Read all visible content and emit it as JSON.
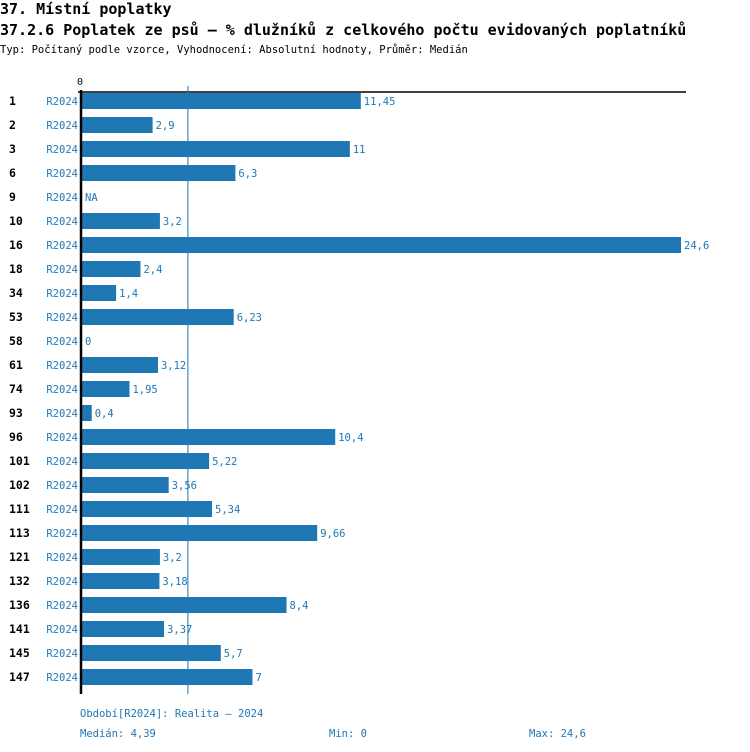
{
  "header": {
    "section": "37. Místní poplatky",
    "title": "37.2.6 Poplatek ze psů – % dlužníků z celkového počtu evidovaných poplatníků",
    "subtitle": "Typ: Počítaný podle vzorce, Vyhodnocení: Absolutní hodnoty, Průměr: Medián"
  },
  "colors": {
    "bar": "#1f77b4",
    "label": "#1f77b4",
    "axis": "#000000"
  },
  "chart_data": {
    "type": "bar",
    "orientation": "horizontal",
    "title": "37.2.6 Poplatek ze psů – % dlužníků z celkového počtu evidovaných poplatníků",
    "xlabel": "",
    "ylabel": "",
    "x_tick_labels": [
      "0"
    ],
    "xlim": [
      0,
      24.6
    ],
    "grid": false,
    "period": "R2024",
    "categories": [
      "1",
      "2",
      "3",
      "6",
      "9",
      "10",
      "16",
      "18",
      "34",
      "53",
      "58",
      "61",
      "74",
      "93",
      "96",
      "101",
      "102",
      "111",
      "113",
      "121",
      "132",
      "136",
      "141",
      "145",
      "147"
    ],
    "values": [
      11.45,
      2.9,
      11,
      6.3,
      null,
      3.2,
      24.6,
      2.4,
      1.4,
      6.23,
      0,
      3.12,
      1.95,
      0.4,
      10.4,
      5.22,
      3.56,
      5.34,
      9.66,
      3.2,
      3.18,
      8.4,
      3.37,
      5.7,
      7
    ],
    "value_labels": [
      "11,45",
      "2,9",
      "11",
      "6,3",
      "NA",
      "3,2",
      "24,6",
      "2,4",
      "1,4",
      "6,23",
      "0",
      "3,12",
      "1,95",
      "0,4",
      "10,4",
      "5,22",
      "3,56",
      "5,34",
      "9,66",
      "3,2",
      "3,18",
      "8,4",
      "3,37",
      "5,7",
      "7"
    ],
    "reference_line": {
      "name": "Medián",
      "value": 4.39
    }
  },
  "footer": {
    "period_legend": "Období[R2024]: Realita – 2024",
    "median": "Medián: 4,39",
    "min": "Min: 0",
    "max": "Max: 24,6"
  }
}
